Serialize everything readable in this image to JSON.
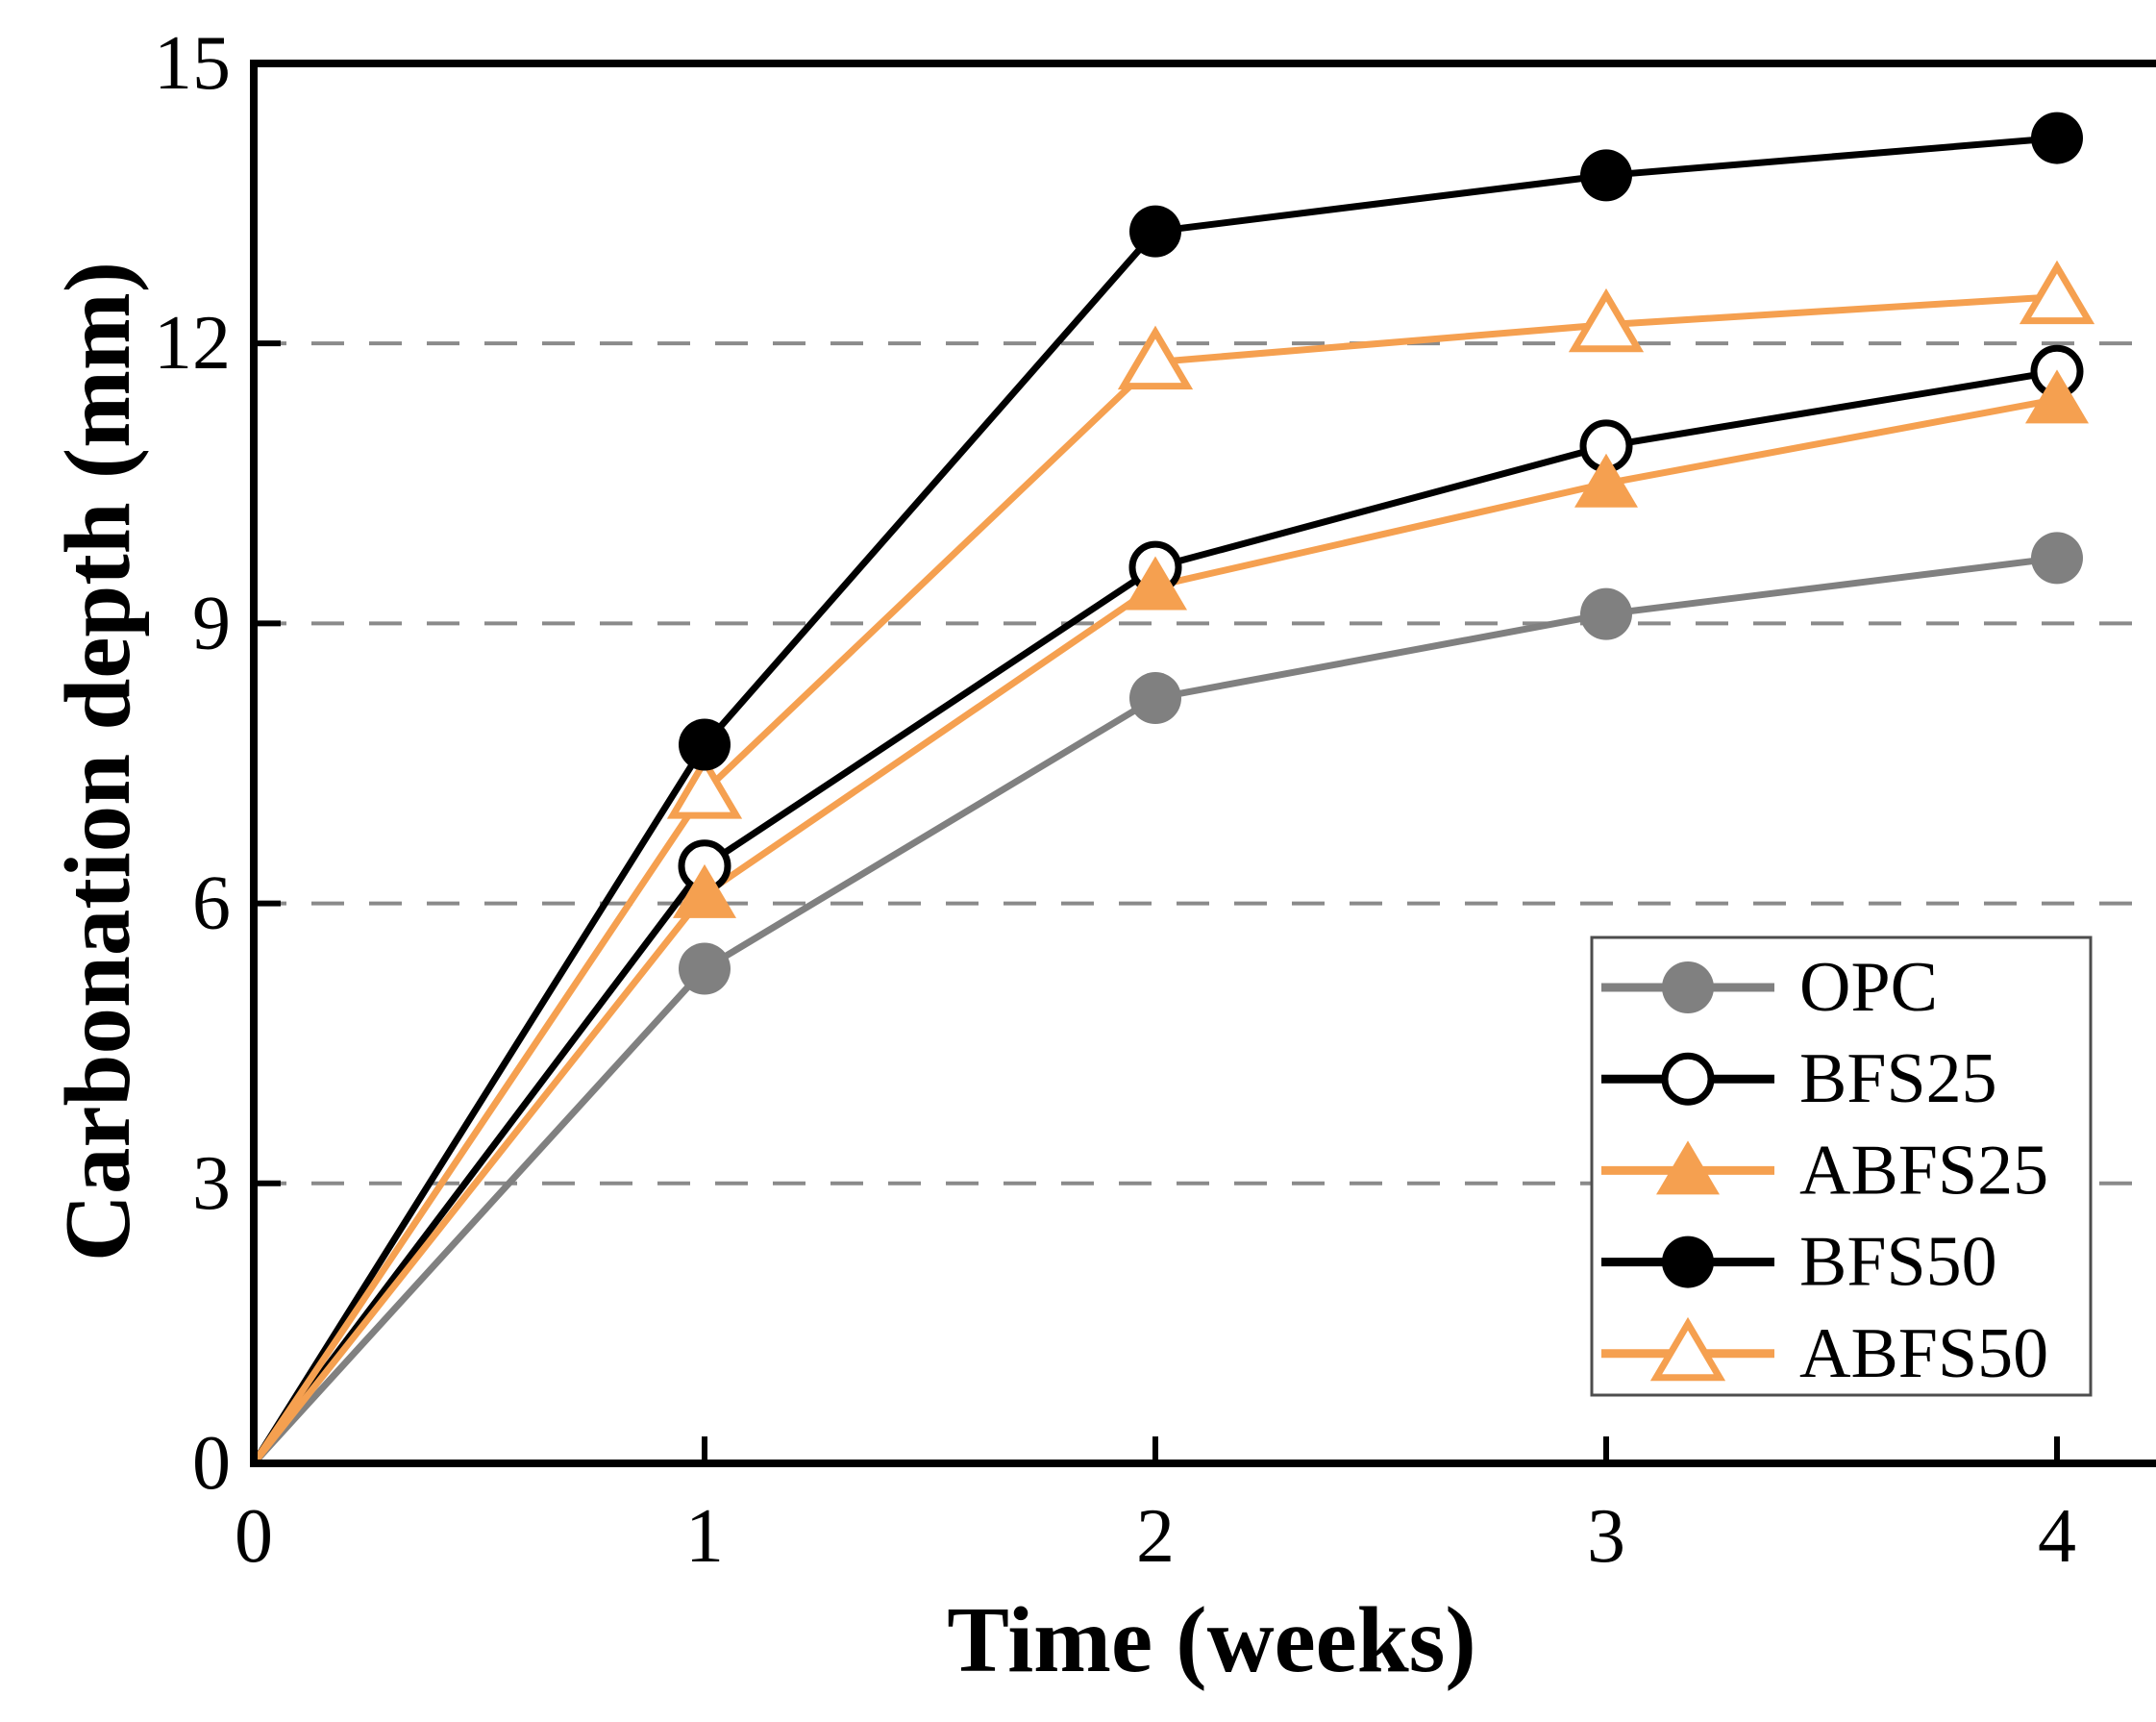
{
  "chart_data": {
    "type": "line",
    "title": "",
    "xlabel": "Time (weeks)",
    "ylabel": "Carbonation depth (mm)",
    "x": [
      0,
      1,
      2,
      3,
      4
    ],
    "xticks": [
      0,
      1,
      2,
      3,
      4
    ],
    "yticks": [
      0,
      3,
      6,
      9,
      12,
      15
    ],
    "xlim": [
      0,
      4.25
    ],
    "ylim": [
      0,
      15
    ],
    "grid": "horizontal-dashed-at-3-6-9-12",
    "legend_position": "lower-right-inside",
    "series": [
      {
        "name": "OPC",
        "color": "#808080",
        "marker": "circle-filled",
        "values": [
          0,
          5.3,
          8.2,
          9.1,
          9.7
        ]
      },
      {
        "name": "BFS25",
        "color": "#000000",
        "marker": "circle-open",
        "values": [
          0,
          6.4,
          9.6,
          10.9,
          11.7
        ]
      },
      {
        "name": "ABFS25",
        "color": "#F5A050",
        "marker": "triangle-filled",
        "values": [
          0,
          6.1,
          9.4,
          10.5,
          11.4
        ]
      },
      {
        "name": "BFS50",
        "color": "#000000",
        "marker": "circle-filled",
        "values": [
          0,
          7.7,
          13.2,
          13.8,
          14.2
        ]
      },
      {
        "name": "ABFS50",
        "color": "#F5A050",
        "marker": "triangle-open",
        "values": [
          0,
          7.2,
          11.8,
          12.2,
          12.5
        ]
      }
    ]
  },
  "style": {
    "accent_orange": "#F5A050",
    "series_gray": "#808080",
    "grid_color": "#8a8a8a",
    "axis_color": "#000000",
    "legend_border_color": "#4d4d4d",
    "background": "#ffffff"
  }
}
